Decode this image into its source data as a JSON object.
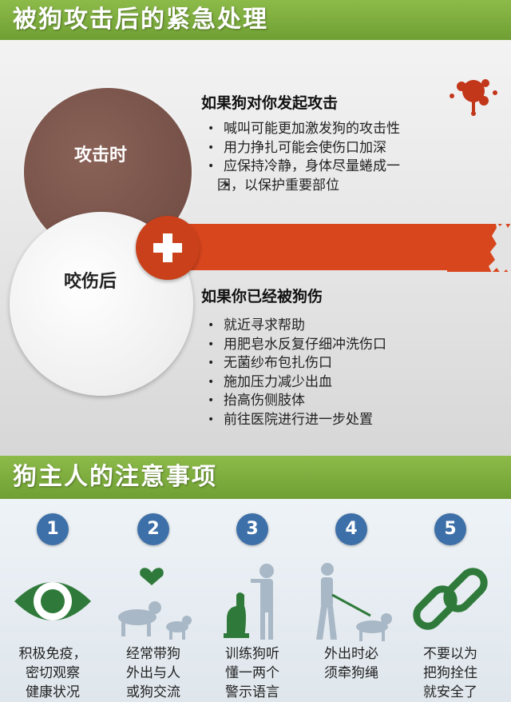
{
  "header": {
    "title": "被狗攻击后的紧急处理"
  },
  "emergency": {
    "attack_circle_label": "攻击时",
    "bite_circle_label": "咬伤后",
    "attack": {
      "title": "如果狗对你发起攻击",
      "items": [
        "喊叫可能更加激发狗的攻击性",
        "用力挣扎可能会使伤口加深",
        "应保持冷静，身体尽量蜷成一",
        "团，以保护重要部位"
      ]
    },
    "bite": {
      "title": "如果你已经被狗伤",
      "items": [
        "就近寻求帮助",
        "用肥皂水反复仔细冲洗伤口",
        "无菌纱布包扎伤口",
        "施加压力减少出血",
        "抬高伤侧肢体",
        "前往医院进行进一步处置"
      ]
    }
  },
  "owner": {
    "title": "狗主人的注意事项",
    "steps": [
      {
        "num": "1",
        "icon": "eye-icon",
        "lines": [
          "积极免疫，",
          "密切观察",
          "健康状况"
        ]
      },
      {
        "num": "2",
        "icon": "people-dogs-heart-icon",
        "lines": [
          "经常带狗",
          "外出与人",
          "或狗交流"
        ]
      },
      {
        "num": "3",
        "icon": "person-training-dog-icon",
        "lines": [
          "训练狗听",
          "懂一两个",
          "警示语言"
        ]
      },
      {
        "num": "4",
        "icon": "person-walking-dog-on-leash-icon",
        "lines": [
          "外出时必",
          "须牵狗绳"
        ]
      },
      {
        "num": "5",
        "icon": "chain-link-icon",
        "lines": [
          "不要以为",
          "把狗拴住",
          "就安全了"
        ]
      }
    ]
  },
  "colors": {
    "banner_green": "#7aaa3b",
    "alert_red": "#d8461e",
    "attack_brown": "#7b554b",
    "step_blue": "#3d6fa8",
    "icon_gray": "#a9b8c6",
    "icon_green": "#2f7a3a"
  }
}
